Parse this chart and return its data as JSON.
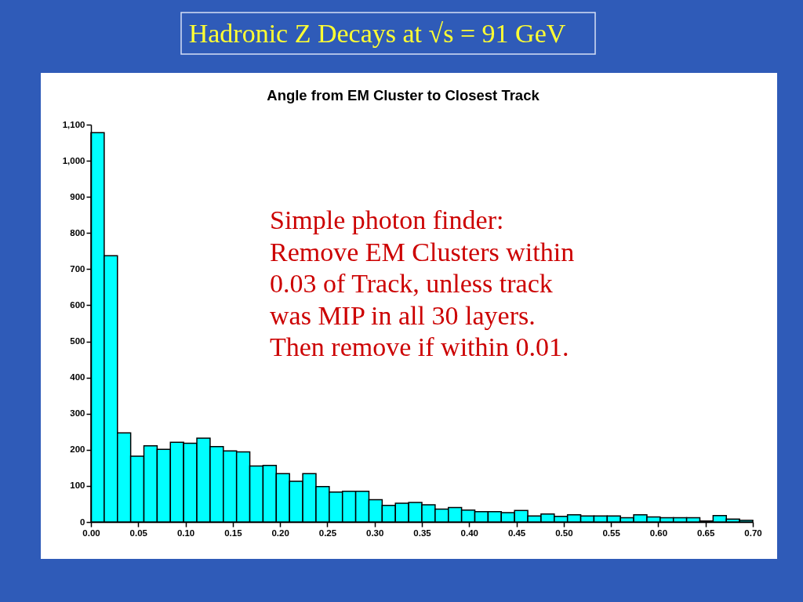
{
  "chart_data": {
    "type": "histogram",
    "title": "Hadronic Z Decays at √s = 91 GeV",
    "subtitle": "Angle from EM Cluster to Closest Track",
    "annotations": [
      "Simple photon finder:\nRemove EM Clusters within\n0.03 of Track, unless track\nwas MIP in all 30 layers.\nThen remove if within 0.01."
    ],
    "bins": [
      0,
      0.014,
      0.028,
      0.042,
      0.056,
      0.07,
      0.084,
      0.098,
      0.112,
      0.126,
      0.14,
      0.154,
      0.168,
      0.182,
      0.196,
      0.21,
      0.224,
      0.238,
      0.252,
      0.266,
      0.28,
      0.294,
      0.308,
      0.322,
      0.336,
      0.35,
      0.364,
      0.378,
      0.392,
      0.406,
      0.42,
      0.434,
      0.448,
      0.462,
      0.476,
      0.49,
      0.504,
      0.518,
      0.532,
      0.546,
      0.56,
      0.574,
      0.588,
      0.602,
      0.616,
      0.63,
      0.644,
      0.658,
      0.672,
      0.686,
      0.7
    ],
    "values": [
      1078,
      737,
      247,
      182,
      211,
      201,
      221,
      218,
      232,
      209,
      197,
      194,
      155,
      157,
      134,
      113,
      134,
      98,
      83,
      85,
      85,
      62,
      46,
      52,
      54,
      48,
      36,
      40,
      33,
      29,
      29,
      26,
      32,
      17,
      22,
      16,
      20,
      17,
      17,
      17,
      12,
      20,
      14,
      12,
      12,
      12,
      3,
      18,
      8,
      5
    ],
    "color": "#00ffff",
    "xlim": [
      0,
      0.7
    ],
    "xticks": [
      {
        "value": 0,
        "label": "0.00"
      },
      0.05,
      {
        "value": 0.1,
        "label": "0.10"
      },
      0.15,
      {
        "value": 0.2,
        "label": "0.20"
      },
      0.25,
      {
        "value": 0.3,
        "label": "0.30"
      },
      0.35,
      {
        "value": 0.4,
        "label": "0.40"
      },
      0.45,
      {
        "value": 0.5,
        "label": "0.50"
      },
      0.55,
      {
        "value": 0.6,
        "label": "0.60"
      },
      0.65,
      {
        "value": 0.7,
        "label": "0.70"
      }
    ],
    "ylim": [
      0,
      1100
    ],
    "yticks": [
      0,
      100,
      200,
      300,
      400,
      500,
      600,
      700,
      800,
      900,
      {
        "value": 1000,
        "label": "1,000"
      },
      {
        "value": 1100,
        "label": "1,100"
      }
    ]
  }
}
